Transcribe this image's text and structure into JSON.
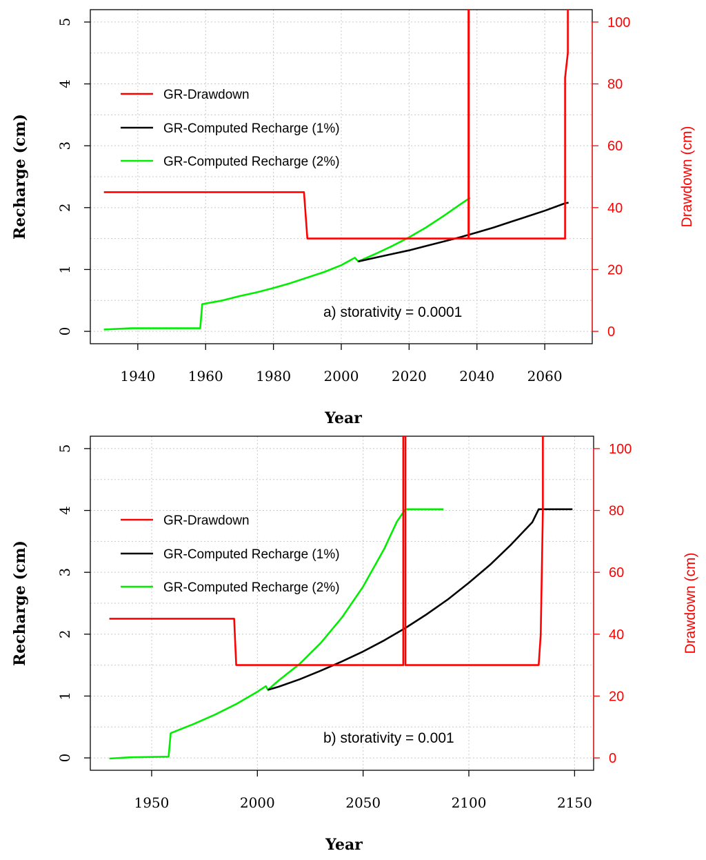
{
  "chart_data": [
    {
      "type": "line",
      "panel": "a",
      "xlabel": "Year",
      "ylabel": "Recharge (cm)",
      "ylabel_right": "Drawdown (cm)",
      "xlim": [
        1926,
        2074
      ],
      "ylim": [
        -0.2,
        5.2
      ],
      "ylim_right": [
        -4,
        104
      ],
      "xticks": [
        1940,
        1960,
        1980,
        2000,
        2020,
        2040,
        2060
      ],
      "yticks": [
        0,
        1,
        2,
        3,
        4,
        5
      ],
      "yticks_right": [
        0,
        20,
        40,
        60,
        80,
        100
      ],
      "grid": true,
      "legend_position": "upper-left",
      "annotation": "a) storativity = 0.0001",
      "colors": {
        "drawdown": "#ff0000",
        "recharge_1pct": "#000000",
        "recharge_2pct": "#00ee00"
      },
      "series": [
        {
          "name": "GR-Drawdown",
          "axis": "right",
          "color": "#ff0000",
          "x": [
            1930,
            1989,
            1990,
            2037.5,
            2037.5,
            2037.6,
            2037.6,
            2066,
            2066,
            2066.8,
            2066.8
          ],
          "y": [
            45,
            45,
            30,
            30,
            104,
            104,
            30,
            30,
            82,
            90,
            104
          ]
        },
        {
          "name": "GR-Computed Recharge (1%)",
          "axis": "left",
          "color": "#000000",
          "x": [
            2005,
            2010,
            2015,
            2020,
            2025,
            2030,
            2035,
            2040,
            2045,
            2050,
            2055,
            2060,
            2066,
            2067
          ],
          "y": [
            1.13,
            1.19,
            1.25,
            1.31,
            1.38,
            1.45,
            1.52,
            1.6,
            1.68,
            1.77,
            1.86,
            1.95,
            2.07,
            2.08
          ]
        },
        {
          "name": "GR-Computed Recharge (2%)",
          "axis": "left",
          "color": "#00ee00",
          "x": [
            1930,
            1938,
            1950,
            1958.4,
            1959,
            1965,
            1970,
            1975,
            1980,
            1985,
            1990,
            1995,
            2000,
            2004,
            2005,
            2010,
            2015,
            2020,
            2025,
            2030,
            2035,
            2038
          ],
          "y": [
            0.03,
            0.05,
            0.05,
            0.05,
            0.44,
            0.5,
            0.57,
            0.63,
            0.7,
            0.78,
            0.87,
            0.96,
            1.07,
            1.19,
            1.13,
            1.25,
            1.38,
            1.52,
            1.68,
            1.86,
            2.05,
            2.16
          ]
        }
      ]
    },
    {
      "type": "line",
      "panel": "b",
      "xlabel": "Year",
      "ylabel": "Recharge (cm)",
      "ylabel_right": "Drawdown (cm)",
      "xlim": [
        1921,
        2159
      ],
      "ylim": [
        -0.2,
        5.2
      ],
      "ylim_right": [
        -4,
        104
      ],
      "xticks": [
        1950,
        2000,
        2050,
        2100,
        2150
      ],
      "yticks": [
        0,
        1,
        2,
        3,
        4,
        5
      ],
      "yticks_right": [
        0,
        20,
        40,
        60,
        80,
        100
      ],
      "grid": true,
      "legend_position": "upper-left",
      "annotation": "b) storativity = 0.001",
      "colors": {
        "drawdown": "#ff0000",
        "recharge_1pct": "#000000",
        "recharge_2pct": "#00ee00"
      },
      "series": [
        {
          "name": "GR-Drawdown",
          "axis": "right",
          "color": "#ff0000",
          "x": [
            1930,
            1989,
            1990,
            2069,
            2069,
            2070,
            2070,
            2133,
            2134,
            2135,
            2135
          ],
          "y": [
            45,
            45,
            30,
            30,
            104,
            104,
            30,
            30,
            40,
            80,
            104
          ]
        },
        {
          "name": "GR-Computed Recharge (1%)",
          "axis": "left",
          "color": "#000000",
          "x": [
            2005,
            2010,
            2020,
            2030,
            2040,
            2050,
            2060,
            2070,
            2080,
            2090,
            2100,
            2110,
            2120,
            2130,
            2133,
            2140,
            2149
          ],
          "y": [
            1.1,
            1.15,
            1.27,
            1.41,
            1.56,
            1.72,
            1.9,
            2.1,
            2.32,
            2.56,
            2.83,
            3.12,
            3.45,
            3.81,
            4.02,
            4.02,
            4.02
          ]
        },
        {
          "name": "GR-Computed Recharge (2%)",
          "axis": "left",
          "color": "#00ee00",
          "x": [
            1930,
            1940,
            1958,
            1959,
            1970,
            1980,
            1990,
            2000,
            2004,
            2005,
            2010,
            2020,
            2030,
            2040,
            2050,
            2060,
            2066,
            2070,
            2080,
            2088
          ],
          "y": [
            -0.01,
            0.01,
            0.02,
            0.4,
            0.55,
            0.7,
            0.87,
            1.07,
            1.16,
            1.1,
            1.25,
            1.52,
            1.86,
            2.27,
            2.77,
            3.38,
            3.82,
            4.02,
            4.02,
            4.02
          ]
        }
      ]
    }
  ]
}
